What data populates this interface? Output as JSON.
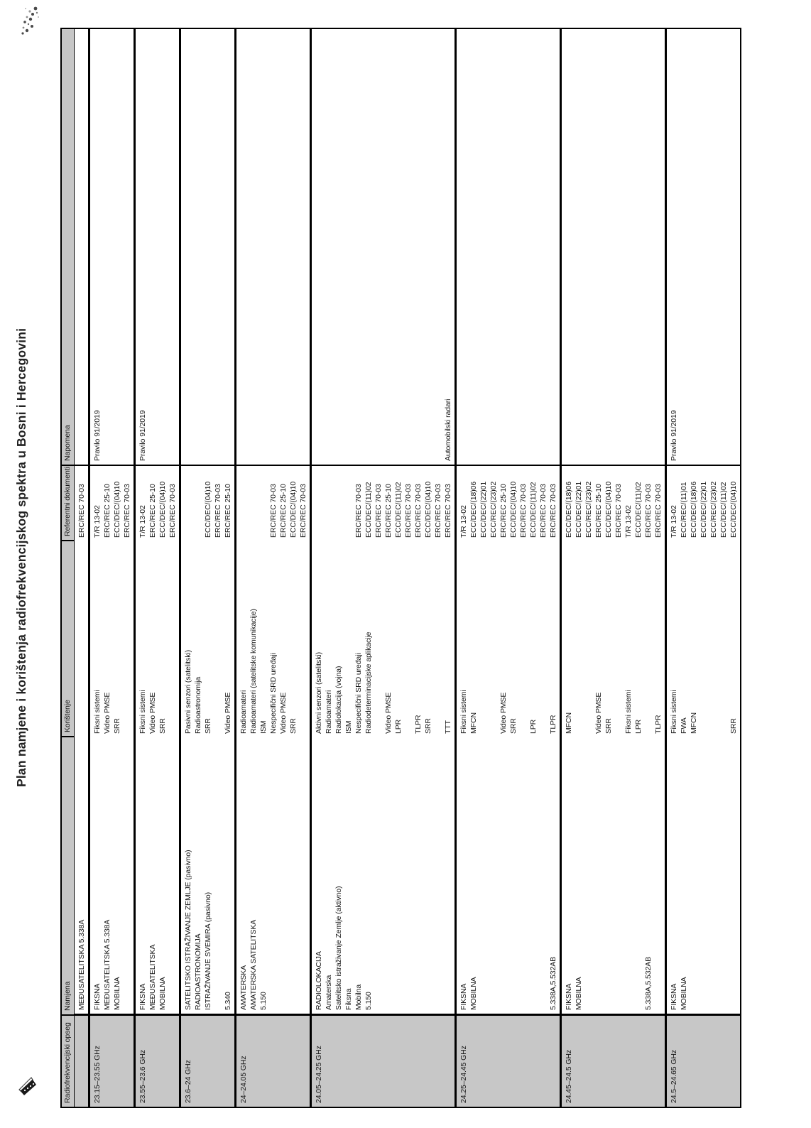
{
  "page": {
    "title": "Plan namjene i korištenja radiofrekvencijskog spektra u Bosni i Hercegovini"
  },
  "colors": {
    "header_bg": "#c7c7c7",
    "freq_column_bg": "#c7c7c7",
    "border": "#000000",
    "text": "#161616"
  },
  "icons": [
    "ink-smudge-icon",
    "stamp-corner-icon"
  ],
  "table": {
    "headers": {
      "opseg": "Radiofrekvencijski opseg",
      "namjena": "Namjena",
      "koristenje": "Korištenje",
      "dokumenti": "Referentni dokumenti",
      "napomena": "Napomena"
    },
    "rows": [
      {
        "opseg": "",
        "namjena": [
          "MEĐUSATELITSKA 5.338A"
        ],
        "koristenje": [],
        "dokumenti": [
          "ERC/REC 70-03"
        ],
        "napomena": []
      },
      {
        "opseg": "23.15–23.55 GHz",
        "namjena": [
          "FIKSNA",
          "MEĐUSATELITSKA 5.338A",
          "MOBILNA"
        ],
        "koristenje": [
          "Fiksni sistemi",
          "Video PMSE",
          "SRR"
        ],
        "dokumenti": [
          "T/R 13-02",
          "ERC/REC 25-10",
          "ECC/DEC/(04)10",
          "ERC/REC 70-03"
        ],
        "napomena": [
          "Pravilo 91/2019"
        ]
      },
      {
        "opseg": "23.55–23.6 GHz",
        "namjena": [
          "FIKSNA",
          "MEĐUSATELITSKA",
          "MOBILNA"
        ],
        "koristenje": [
          "Fiksni sistemi",
          "Video PMSE",
          "SRR"
        ],
        "dokumenti": [
          "T/R 13-02",
          "ERC/REC 25-10",
          "ECC/DEC/(04)10",
          "ERC/REC 70-03"
        ],
        "napomena": [
          "Pravilo 91/2019"
        ]
      },
      {
        "opseg": "23.6–24 GHz",
        "namjena": [
          "SATELITSKO ISTRAŽIVANJE ZEMLJE (pasivno)",
          "RADIOASTRONOMIJA",
          "ISTRAŽIVANJE SVEMIRA (pasivno)",
          "",
          "5.340"
        ],
        "koristenje": [
          "Pasivni senzori (satelitski)",
          "Radioastronomija",
          "SRR",
          "",
          "Video PMSE"
        ],
        "dokumenti": [
          "",
          "",
          "ECC/DEC/(04)10",
          "ERC/REC 70-03",
          "ERC/REC 25-10"
        ],
        "napomena": []
      },
      {
        "opseg": "24–24.05 GHz",
        "namjena": [
          "AMATERSKA",
          "AMATERSKA SATELITSKA",
          "5.150"
        ],
        "koristenje": [
          "Radioamateri",
          "Radioamateri (satelitske komunikacije)",
          "ISM",
          "Nespecifični SRD uređaji",
          "Video PMSE",
          "SRR"
        ],
        "dokumenti": [
          "",
          "",
          "",
          "ERC/REC 70-03",
          "ERC/REC 25-10",
          "ECC/DEC/(04)10",
          "ERC/REC 70-03"
        ],
        "napomena": []
      },
      {
        "opseg": "24.05–24.25 GHz",
        "namjena": [
          "RADIOLOKACIJA",
          "Amaterska",
          "Satelitsko istraživanje Zemlje (aktivno)",
          "Fiksna",
          "Mobilna",
          "5.150"
        ],
        "koristenje": [
          "Aktivni senzori (satelitski)",
          "Radioamateri",
          "Radiolokacija (vojna)",
          "ISM",
          "Nespecifični SRD uređaji",
          "Radiodeterminacijske aplikacije",
          "",
          "Video PMSE",
          "LPR",
          "",
          "TLPR",
          "SRR",
          "",
          "TTT"
        ],
        "dokumenti": [
          "",
          "",
          "",
          "",
          "ERC/REC 70-03",
          "ECC/DEC/(11)02",
          "ERC/REC 70-03",
          "ERC/REC 25-10",
          "ECC/DEC/(11)02",
          "ERC/REC 70-03",
          "ERC/REC 70-03",
          "ECC/DEC/(04)10",
          "ERC/REC 70-03",
          "ERC/REC 70-03"
        ],
        "napomena": [
          "",
          "",
          "",
          "",
          "",
          "",
          "",
          "",
          "",
          "",
          "",
          "",
          "",
          "Automobilski radari"
        ]
      },
      {
        "opseg": "24.25–24.45 GHz",
        "namjena": [
          "FIKSNA",
          "MOBILNA",
          "",
          "",
          "",
          "",
          "",
          "",
          "",
          "5.338A,5.532AB"
        ],
        "koristenje": [
          "Fiksni sistemi",
          "MFCN",
          "",
          "",
          "Video PMSE",
          "SRR",
          "",
          "LPR",
          "",
          "TLPR"
        ],
        "dokumenti": [
          "T/R 13-02",
          "ECC/DEC/(18)06",
          "ECC/DEC/(22)01",
          "ECC/REC/(23)02",
          "ERC/REC 25-10",
          "ECC/DEC/(04)10",
          "ERC/REC 70-03",
          "ECC/DEC/(11)02",
          "ERC/REC 70-03",
          "ERC/REC 70-03"
        ],
        "napomena": []
      },
      {
        "opseg": "24.45–24.5 GHz",
        "namjena": [
          "FIKSNA",
          "MOBILNA",
          "",
          "",
          "",
          "",
          "",
          "",
          "5.338A,5.532AB",
          ""
        ],
        "koristenje": [
          "MFCN",
          "",
          "",
          "Video PMSE",
          "SRR",
          "",
          "Fiksni sistemi",
          "LPR",
          "",
          "TLPR"
        ],
        "dokumenti": [
          "ECC/DEC/(18)06",
          "ECC/DEC/(22)01",
          "ECC/REC/(23)02",
          "ERC/REC 25-10",
          "ECC/DEC/(04)10",
          "ERC/REC 70-03",
          "T/R 13-02",
          "ECC/DEC/(11)02",
          "ERC/REC 70-03",
          "ERC/REC 70-03"
        ],
        "napomena": []
      },
      {
        "opseg": "24.5–24.65 GHz",
        "namjena": [
          "FIKSNA",
          "MOBILNA"
        ],
        "koristenje": [
          "Fiksni sistemi",
          "FWA",
          "MFCN",
          "",
          "",
          "",
          "SRR"
        ],
        "dokumenti": [
          "T/R 13-02",
          "ECC/REC/(11)01",
          "ECC/DEC/(18)06",
          "ECC/DEC/(22)01",
          "ECC/REC/(23)02",
          "ECC/DEC/(11)02",
          "ECC/DEC/(04)10"
        ],
        "napomena": [
          "Pravilo 91/2019"
        ]
      }
    ]
  }
}
